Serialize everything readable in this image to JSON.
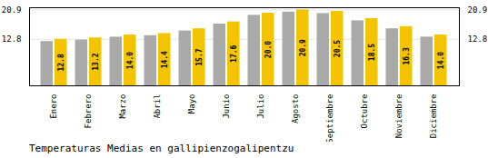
{
  "chart_data": {
    "type": "bar",
    "title": "Temperaturas Medias en gallipienzogalipentzu",
    "categories": [
      "Enero",
      "Febrero",
      "Marzo",
      "Abril",
      "Mayo",
      "Junio",
      "Julio",
      "Agosto",
      "Septiembre",
      "Octubre",
      "Noviembre",
      "Diciembre"
    ],
    "series": [
      {
        "color": "#AAAAAA",
        "values": [
          12.2,
          12.6,
          13.4,
          13.8,
          15.1,
          17.0,
          19.4,
          20.3,
          19.9,
          17.9,
          15.7,
          13.4
        ]
      },
      {
        "color": "#F5C400",
        "values": [
          12.8,
          13.2,
          14.0,
          14.4,
          15.7,
          17.6,
          20.0,
          20.9,
          20.5,
          18.5,
          16.3,
          14.0
        ],
        "data_labels": true,
        "value_labels": [
          "12.8",
          "13.2",
          "14.0",
          "14.4",
          "15.7",
          "17.6",
          "20.0",
          "20.9",
          "20.5",
          "18.5",
          "16.3",
          "14.0"
        ]
      }
    ],
    "ylim": [
      0,
      21.5
    ],
    "yticks": [
      12.8,
      20.9
    ],
    "grid": true
  }
}
